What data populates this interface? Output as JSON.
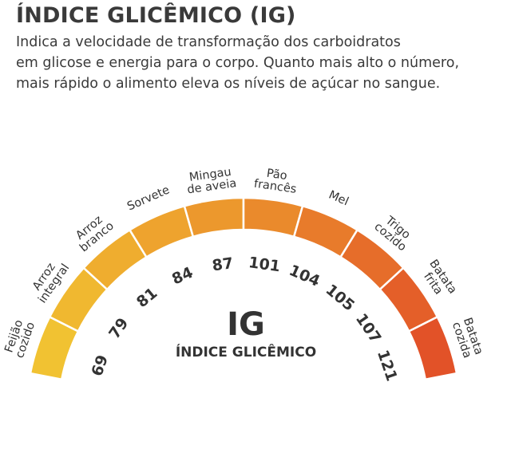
{
  "title": "ÍNDICE GLICÊMICO (IG)",
  "description": [
    "Indica a velocidade de transformação dos carboidratos",
    "em glicose e energia para o corpo. Quanto mais alto o número,",
    "mais rápido o alimento eleva os níveis de açúcar no sangue."
  ],
  "gauge": {
    "center_title": "IG",
    "center_subtitle": "ÍNDICE GLICÊMICO",
    "segments": [
      {
        "food": [
          "Feijão",
          "cozido"
        ],
        "value": "69",
        "color": "#f1c232"
      },
      {
        "food": [
          "Arroz",
          "integral"
        ],
        "value": "79",
        "color": "#f0b830"
      },
      {
        "food": [
          "Arroz",
          "branco"
        ],
        "value": "81",
        "color": "#efad2f"
      },
      {
        "food": [
          "Sorvete"
        ],
        "value": "84",
        "color": "#eea32e"
      },
      {
        "food": [
          "Mingau",
          "de aveia"
        ],
        "value": "87",
        "color": "#ec982d"
      },
      {
        "food": [
          "Pão",
          "francês"
        ],
        "value": "101",
        "color": "#ea8a2c"
      },
      {
        "food": [
          "Mel"
        ],
        "value": "104",
        "color": "#e87b2b"
      },
      {
        "food": [
          "Trigo",
          "cozido"
        ],
        "value": "105",
        "color": "#e66d2a"
      },
      {
        "food": [
          "Batata",
          "frita"
        ],
        "value": "107",
        "color": "#e45f29"
      },
      {
        "food": [
          "Batata",
          "cozida"
        ],
        "value": "121",
        "color": "#e25228"
      }
    ]
  }
}
